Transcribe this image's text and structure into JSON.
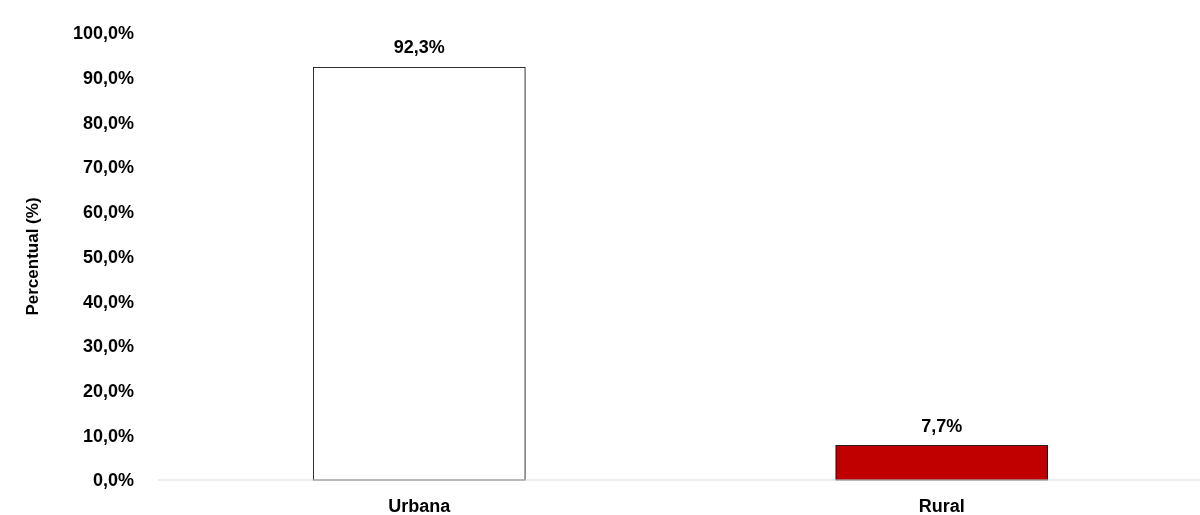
{
  "chart_data": {
    "type": "bar",
    "ylabel": "Percentual (%)",
    "categories": [
      "Urbana",
      "Rural"
    ],
    "values": [
      92.3,
      7.7
    ],
    "colors": [
      "#ffffff",
      "#c00000"
    ],
    "value_labels": [
      "92,3%",
      "7,7%"
    ],
    "ylim": [
      0,
      100
    ],
    "yticks": [
      {
        "value": 0,
        "label": "0,0%"
      },
      {
        "value": 10,
        "label": "10,0%"
      },
      {
        "value": 20,
        "label": "20,0%"
      },
      {
        "value": 30,
        "label": "30,0%"
      },
      {
        "value": 40,
        "label": "40,0%"
      },
      {
        "value": 50,
        "label": "50,0%"
      },
      {
        "value": 60,
        "label": "60,0%"
      },
      {
        "value": 70,
        "label": "70,0%"
      },
      {
        "value": 80,
        "label": "80,0%"
      },
      {
        "value": 90,
        "label": "90,0%"
      },
      {
        "value": 100,
        "label": "100,0%"
      }
    ],
    "grid": false
  }
}
